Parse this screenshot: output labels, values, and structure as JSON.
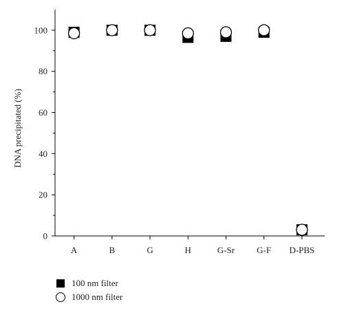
{
  "chart_data": {
    "type": "scatter",
    "categories": [
      "A",
      "B",
      "G",
      "H",
      "G-Sr",
      "G-F",
      "D-PBS"
    ],
    "series": [
      {
        "name": "100 nm filter",
        "marker": "filled-square",
        "color": "#000000",
        "values": [
          99,
          100,
          100,
          96.5,
          97,
          99,
          3
        ]
      },
      {
        "name": "1000 nm filter",
        "marker": "open-circle",
        "color": "#000000",
        "values": [
          98.5,
          100,
          100,
          98.5,
          99,
          100,
          3
        ]
      }
    ],
    "ylabel": "DNA precipitated (%)",
    "xlabel": "",
    "title": "",
    "ylim": [
      0,
      110
    ],
    "yticks": [
      0,
      20,
      40,
      60,
      80,
      100
    ],
    "grid": false,
    "legend_position": "bottom-left"
  }
}
